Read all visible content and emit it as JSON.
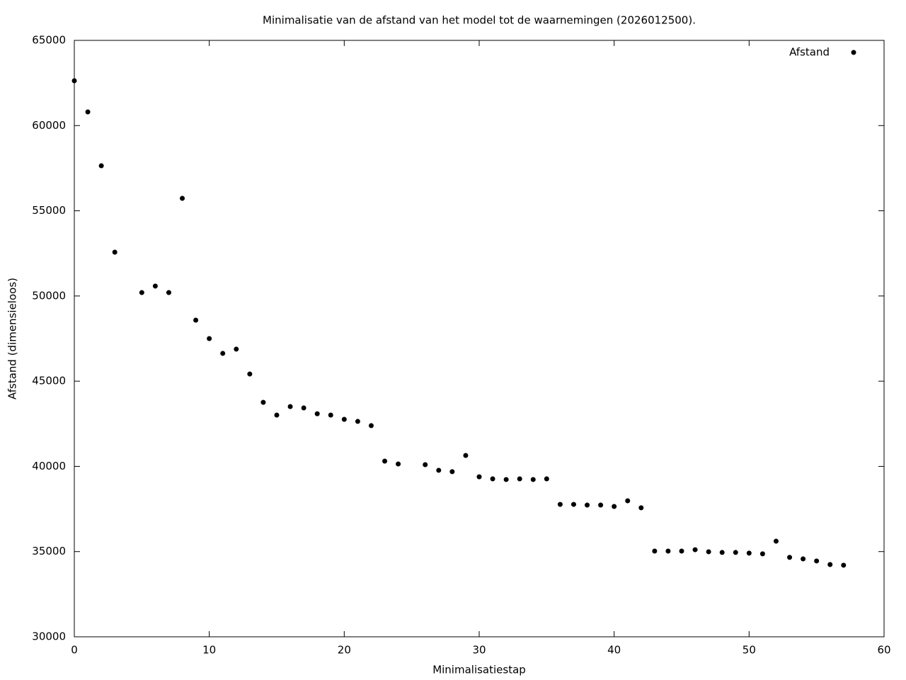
{
  "chart_data": {
    "type": "scatter",
    "title": "Minimalisatie van de afstand van het model tot de waarnemingen (2026012500).",
    "x_label": "Minimalisatiestap",
    "y_label": "Afstand (dimensieloos)",
    "xlim": [
      0,
      60
    ],
    "xticks": [
      0,
      10,
      20,
      30,
      40,
      50,
      60
    ],
    "ylim": [
      30000,
      65000
    ],
    "yticks": [
      30000,
      35000,
      40000,
      45000,
      50000,
      55000,
      60000,
      65000
    ],
    "legend": "upper right",
    "series": [
      {
        "name": "Afstand",
        "color": "#000000",
        "x": [
          0,
          1,
          2,
          3,
          5,
          6,
          7,
          8,
          9,
          10,
          11,
          12,
          13,
          14,
          15,
          16,
          17,
          18,
          19,
          20,
          21,
          22,
          23,
          24,
          26,
          27,
          28,
          29,
          30,
          31,
          32,
          33,
          34,
          35,
          36,
          37,
          38,
          39,
          40,
          41,
          42,
          43,
          44,
          45,
          46,
          47,
          48,
          49,
          50,
          51,
          52,
          53,
          54,
          55,
          56,
          57
        ],
        "values": [
          62630,
          60800,
          57640,
          52570,
          50200,
          50580,
          50200,
          55730,
          48580,
          47500,
          46630,
          46880,
          45420,
          43760,
          43010,
          43510,
          43430,
          43090,
          43010,
          42760,
          42640,
          42390,
          40310,
          40140,
          40100,
          39770,
          39690,
          40640,
          39390,
          39270,
          39230,
          39270,
          39230,
          39270,
          37770,
          37770,
          37730,
          37730,
          37650,
          37980,
          37570,
          35030,
          35030,
          35030,
          35110,
          34990,
          34950,
          34950,
          34910,
          34870,
          35610,
          34660,
          34570,
          34450,
          34240,
          34200
        ]
      }
    ]
  }
}
